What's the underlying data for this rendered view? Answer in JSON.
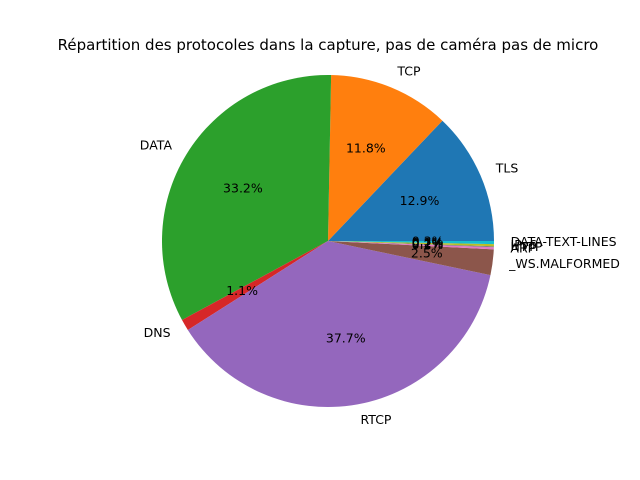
{
  "chart_data": {
    "type": "pie",
    "title": "Répartition des protocoles dans la capture, pas de caméra pas de micro",
    "start_angle_deg": 0,
    "direction": "counterclockwise",
    "slices": [
      {
        "label": "TLS",
        "value": 12.9,
        "pct": "12.9%",
        "color": "#1f77b4"
      },
      {
        "label": "TCP",
        "value": 11.8,
        "pct": "11.8%",
        "color": "#ff7f0e"
      },
      {
        "label": "DATA",
        "value": 33.2,
        "pct": "33.2%",
        "color": "#2ca02c"
      },
      {
        "label": "DNS",
        "value": 1.1,
        "pct": "1.1%",
        "color": "#d62728"
      },
      {
        "label": "RTCP",
        "value": 37.7,
        "pct": "37.7%",
        "color": "#9467bd"
      },
      {
        "label": "_WS.MALFORMED",
        "value": 2.5,
        "pct": "2.5%",
        "color": "#8c564b"
      },
      {
        "label": "ARP",
        "value": 0.2,
        "pct": "0.2%",
        "color": "#e377c2"
      },
      {
        "label": "HTTP",
        "value": 0.1,
        "pct": "0.1%",
        "color": "#7f7f7f"
      },
      {
        "label": "IPv6",
        "value": 0.2,
        "pct": "0.2%",
        "color": "#bcbd22"
      },
      {
        "label": "DATA-TEXT-LINES",
        "value": 0.3,
        "pct": "0.3%",
        "color": "#17becf"
      }
    ]
  }
}
